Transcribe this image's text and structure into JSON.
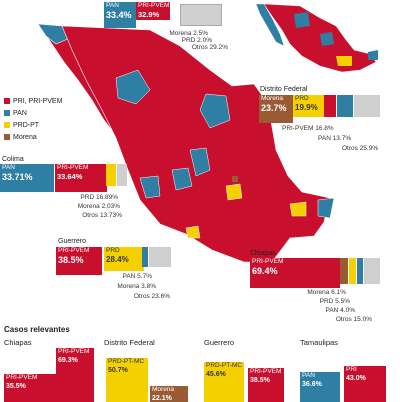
{
  "legend": [
    {
      "label": "PRI, PRI-PVEM",
      "color": "#c8102e"
    },
    {
      "label": "PAN",
      "color": "#2f7ea3"
    },
    {
      "label": "PRD-PT",
      "color": "#f5d000"
    },
    {
      "label": "Morena",
      "color": "#9a5b34"
    }
  ],
  "national": {
    "pan": {
      "name": "PAN",
      "value": "33.4%"
    },
    "pri": {
      "name": "PRI-PVEM",
      "value": "32.9%"
    },
    "others": [
      "Morena 2.5%",
      "PRD 2.0%",
      "Otros 29.2%"
    ]
  },
  "states": {
    "df": {
      "title": "Distrito Federal",
      "morena": {
        "name": "Morena",
        "value": "23.7%"
      },
      "prd": {
        "name": "PRD",
        "value": "19.9%"
      },
      "others": [
        "PRI-PVEM 16.8%",
        "PAN 13.7%",
        "Otros 25.9%"
      ]
    },
    "colima": {
      "title": "Colima",
      "pan": {
        "name": "PAN",
        "value": "33.71%"
      },
      "pri": {
        "name": "PRI-PVEM",
        "value": "33.64%"
      },
      "others": [
        "PRD 16.89%",
        "Morena 2.03%",
        "Otros 13.73%"
      ]
    },
    "guerrero": {
      "title": "Guerrero",
      "pri": {
        "name": "PRI-PVEM",
        "value": "38.5%"
      },
      "prd": {
        "name": "PRD",
        "value": "28.4%"
      },
      "others": [
        "PAN 5.7%",
        "Morena 3.8%",
        "Otros 23.6%"
      ]
    },
    "chiapas": {
      "title": "Chiapas",
      "pri": {
        "name": "PRI-PVEM",
        "value": "69.4%"
      },
      "others": [
        "Morena 6.1%",
        "PRD 5.5%",
        "PAN 4.0%",
        "Otros 15.0%"
      ]
    }
  },
  "cases": {
    "title": "Casos relevantes",
    "columns": [
      {
        "state": "Chiapas",
        "items": [
          {
            "name": "PRI-PVEM",
            "value": "69.3%"
          },
          {
            "name": "PRI-PVEM",
            "value": "35.5%"
          }
        ]
      },
      {
        "state": "Distrito Federal",
        "items": [
          {
            "name": "PRD-PT-MC",
            "value": "50.7%"
          },
          {
            "name": "Morena",
            "value": "22.1%"
          }
        ]
      },
      {
        "state": "Guerrero",
        "items": [
          {
            "name": "PRD-PT-MC",
            "value": "45.6%"
          },
          {
            "name": "PRI-PVEM",
            "value": "38.5%"
          }
        ]
      },
      {
        "state": "Tamaulipas",
        "items": [
          {
            "name": "PAN",
            "value": "36.6%"
          },
          {
            "name": "PRI",
            "value": "43.0%"
          }
        ]
      }
    ]
  }
}
